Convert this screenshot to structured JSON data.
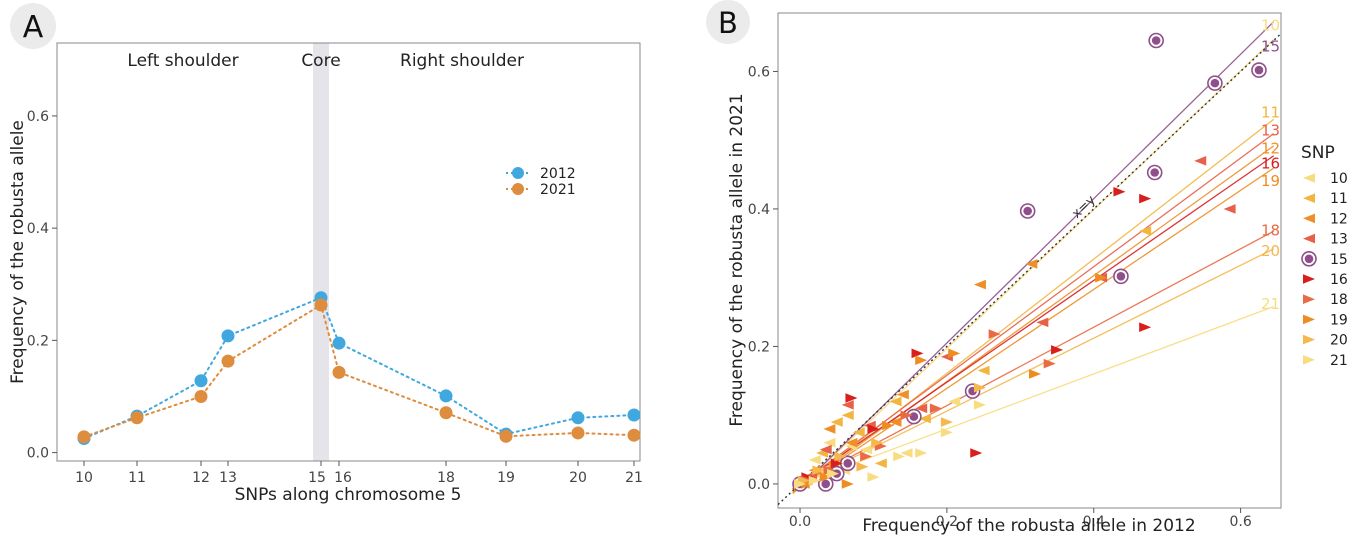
{
  "chart_data": [
    {
      "type": "line",
      "panel_label": "A",
      "xlabel": "SNPs along chromosome 5",
      "ylabel": "Frequency of the robusta allele",
      "region_labels": [
        "Left shoulder",
        "Core",
        "Right shoulder"
      ],
      "x_ticks": [
        "10",
        "11",
        "12",
        "13",
        "15",
        "16",
        "18",
        "19",
        "20",
        "21"
      ],
      "y_ticks": [
        "0.0",
        "0.2",
        "0.4",
        "0.6"
      ],
      "ylim": [
        -0.015,
        0.73
      ],
      "highlight_snp": "15",
      "legend_position": "inside-right",
      "series": [
        {
          "name": "2012",
          "color": "#41a8df",
          "values": [
            0.025,
            0.065,
            0.128,
            0.208,
            0.276,
            0.195,
            0.101,
            0.033,
            0.062,
            0.067
          ]
        },
        {
          "name": "2021",
          "color": "#de8c3e",
          "values": [
            0.028,
            0.062,
            0.1,
            0.163,
            0.263,
            0.143,
            0.071,
            0.029,
            0.035,
            0.031
          ]
        }
      ]
    },
    {
      "type": "scatter",
      "panel_label": "B",
      "xlabel": "Frequency of the robusta allele in 2012",
      "ylabel": "Frequency of the robusta allele in 2021",
      "x_ticks": [
        "0.0",
        "0.2",
        "0.4",
        "0.6"
      ],
      "y_ticks": [
        "0.0",
        "0.2",
        "0.4",
        "0.6"
      ],
      "xlim": [
        -0.03,
        0.655
      ],
      "ylim": [
        -0.035,
        0.685
      ],
      "reference_line_label": "x=y",
      "legend_title": "SNP",
      "legend_position": "right",
      "series": [
        {
          "name": "10",
          "color": "#f8dc80",
          "marker": "tri-left",
          "slope": 1.01,
          "intercept": -0.005,
          "label_y": 0.667,
          "points": [
            [
              0.005,
              0.003
            ],
            [
              0.015,
              0.012
            ],
            [
              0.03,
              0.02
            ],
            [
              0.055,
              0.03
            ],
            [
              0.07,
              0.055
            ],
            [
              0.09,
              0.05
            ],
            [
              0.145,
              0.045
            ],
            [
              0.21,
              0.12
            ],
            [
              0.06,
              0.02
            ],
            [
              0.02,
              0.035
            ],
            [
              0.04,
              0.06
            ]
          ]
        },
        {
          "name": "11",
          "color": "#f2b63f",
          "marker": "tri-left",
          "slope": 0.83,
          "intercept": -0.005,
          "label_y": 0.54,
          "points": [
            [
              0.01,
              0.01
            ],
            [
              0.03,
              0.045
            ],
            [
              0.05,
              0.09
            ],
            [
              0.08,
              0.075
            ],
            [
              0.13,
              0.12
            ],
            [
              0.17,
              0.095
            ],
            [
              0.25,
              0.165
            ],
            [
              0.47,
              0.368
            ],
            [
              0.11,
              0.03
            ],
            [
              0.065,
              0.1
            ]
          ]
        },
        {
          "name": "12",
          "color": "#ef8f2a",
          "marker": "tri-left",
          "slope": 0.77,
          "intercept": -0.005,
          "label_y": 0.488,
          "points": [
            [
              0.005,
              0.0
            ],
            [
              0.02,
              0.02
            ],
            [
              0.045,
              0.03
            ],
            [
              0.07,
              0.06
            ],
            [
              0.13,
              0.09
            ],
            [
              0.14,
              0.13
            ],
            [
              0.245,
              0.29
            ],
            [
              0.315,
              0.32
            ],
            [
              0.04,
              0.08
            ]
          ]
        },
        {
          "name": "13",
          "color": "#e8604a",
          "marker": "tri-left",
          "slope": 0.79,
          "intercept": 0.0,
          "label_y": 0.514,
          "points": [
            [
              0.015,
              0.012
            ],
            [
              0.035,
              0.05
            ],
            [
              0.065,
              0.115
            ],
            [
              0.095,
              0.085
            ],
            [
              0.165,
              0.11
            ],
            [
              0.2,
              0.185
            ],
            [
              0.33,
              0.235
            ],
            [
              0.41,
              0.3
            ],
            [
              0.545,
              0.47
            ],
            [
              0.585,
              0.4
            ]
          ]
        },
        {
          "name": "15",
          "color": "#8e4f8a",
          "marker": "circle",
          "slope": 1.05,
          "intercept": -0.005,
          "label_y": 0.636,
          "points": [
            [
              0.0,
              0.0
            ],
            [
              0.035,
              0.0
            ],
            [
              0.05,
              0.015
            ],
            [
              0.065,
              0.03
            ],
            [
              0.155,
              0.098
            ],
            [
              0.235,
              0.135
            ],
            [
              0.31,
              0.397
            ],
            [
              0.437,
              0.302
            ],
            [
              0.483,
              0.453
            ],
            [
              0.485,
              0.645
            ],
            [
              0.565,
              0.583
            ],
            [
              0.625,
              0.602
            ]
          ]
        },
        {
          "name": "16",
          "color": "#d91e1e",
          "marker": "tri-right",
          "slope": 0.74,
          "intercept": 0.0,
          "label_y": 0.466,
          "points": [
            [
              0.01,
              0.01
            ],
            [
              0.05,
              0.03
            ],
            [
              0.07,
              0.125
            ],
            [
              0.1,
              0.08
            ],
            [
              0.16,
              0.19
            ],
            [
              0.24,
              0.045
            ],
            [
              0.35,
              0.195
            ],
            [
              0.435,
              0.425
            ],
            [
              0.47,
              0.415
            ],
            [
              0.47,
              0.228
            ]
          ]
        },
        {
          "name": "18",
          "color": "#ea6a43",
          "marker": "tri-right",
          "slope": 0.57,
          "intercept": 0.0,
          "label_y": 0.369,
          "points": [
            [
              0.01,
              0.005
            ],
            [
              0.04,
              0.02
            ],
            [
              0.09,
              0.04
            ],
            [
              0.11,
              0.055
            ],
            [
              0.145,
              0.1
            ],
            [
              0.185,
              0.11
            ],
            [
              0.265,
              0.218
            ],
            [
              0.34,
              0.175
            ]
          ]
        },
        {
          "name": "19",
          "color": "#ef8c1f",
          "marker": "tri-right",
          "slope": 0.72,
          "intercept": -0.005,
          "label_y": 0.441,
          "points": [
            [
              0.01,
              0.0
            ],
            [
              0.035,
              0.01
            ],
            [
              0.065,
              0.0
            ],
            [
              0.12,
              0.085
            ],
            [
              0.165,
              0.18
            ],
            [
              0.21,
              0.19
            ],
            [
              0.32,
              0.16
            ],
            [
              0.41,
              0.3
            ]
          ]
        },
        {
          "name": "20",
          "color": "#f4b84c",
          "marker": "tri-right",
          "slope": 0.53,
          "intercept": 0.0,
          "label_y": 0.339,
          "points": [
            [
              0.005,
              0.005
            ],
            [
              0.025,
              0.02
            ],
            [
              0.055,
              0.04
            ],
            [
              0.085,
              0.025
            ],
            [
              0.105,
              0.06
            ],
            [
              0.2,
              0.09
            ],
            [
              0.245,
              0.14
            ]
          ]
        },
        {
          "name": "21",
          "color": "#f8dc80",
          "marker": "tri-right",
          "slope": 0.4,
          "intercept": 0.0,
          "label_y": 0.262,
          "points": [
            [
              0.0,
              0.0
            ],
            [
              0.02,
              0.005
            ],
            [
              0.045,
              0.015
            ],
            [
              0.1,
              0.01
            ],
            [
              0.135,
              0.04
            ],
            [
              0.165,
              0.045
            ],
            [
              0.2,
              0.075
            ],
            [
              0.245,
              0.115
            ]
          ]
        }
      ]
    }
  ]
}
